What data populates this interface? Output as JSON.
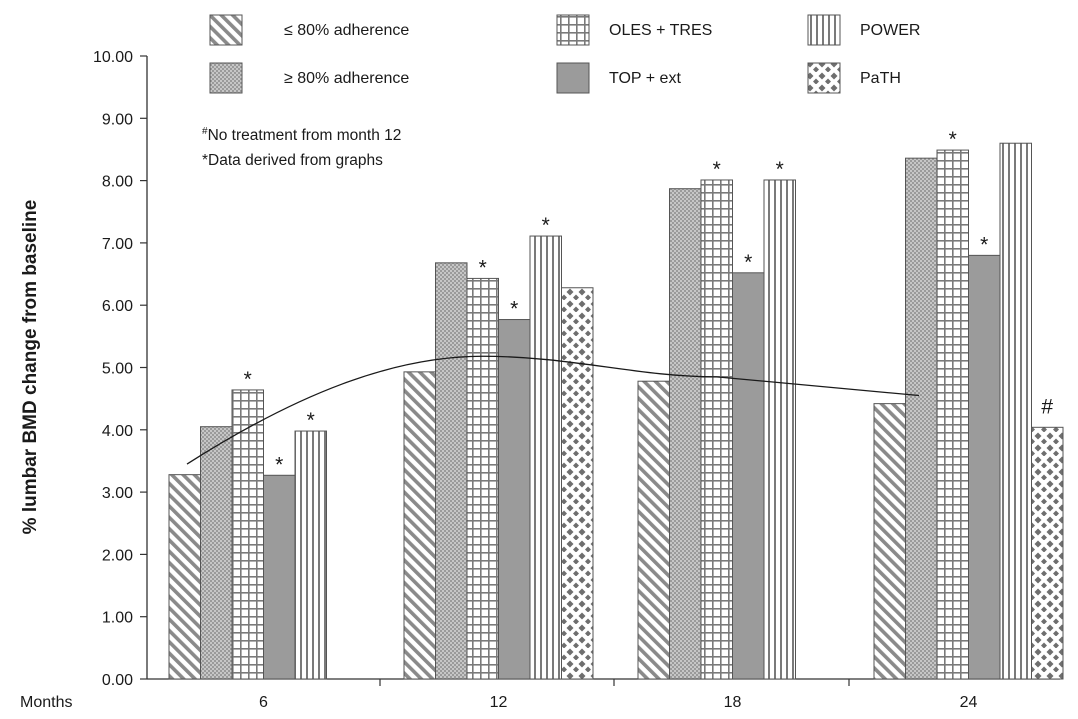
{
  "chart_data": {
    "type": "bar",
    "title": "",
    "ylabel": "% lumbar BMD change from baseline",
    "xlabel": "Months",
    "categories": [
      "6",
      "12",
      "18",
      "24"
    ],
    "ylim": [
      0,
      10
    ],
    "yticks": [
      "0.00",
      "1.00",
      "2.00",
      "3.00",
      "4.00",
      "5.00",
      "6.00",
      "7.00",
      "8.00",
      "9.00",
      "10.00"
    ],
    "grid": false,
    "legend_position": "top",
    "series": [
      {
        "name": "≤ 80% adherence",
        "pattern": "diagonal-hatch",
        "values": [
          3.28,
          4.93,
          4.78,
          4.42
        ],
        "markers": [
          "",
          "",
          "",
          ""
        ]
      },
      {
        "name": "≥ 80% adherence",
        "pattern": "dotted",
        "values": [
          4.05,
          6.68,
          7.87,
          8.36
        ],
        "markers": [
          "",
          "",
          "",
          ""
        ]
      },
      {
        "name": "OLES + TRES",
        "pattern": "grid",
        "values": [
          4.64,
          6.43,
          8.01,
          8.49
        ],
        "markers": [
          "*",
          "*",
          "*",
          "*"
        ]
      },
      {
        "name": "TOP + ext",
        "pattern": "solid-gray",
        "values": [
          3.27,
          5.77,
          6.52,
          6.8
        ],
        "markers": [
          "*",
          "*",
          "*",
          "*"
        ]
      },
      {
        "name": "POWER",
        "pattern": "vertical-lines",
        "values": [
          3.98,
          7.11,
          8.01,
          8.6
        ],
        "markers": [
          "*",
          "*",
          "*",
          ""
        ]
      },
      {
        "name": "PaTH",
        "pattern": "diamonds",
        "values": [
          null,
          6.28,
          null,
          4.04
        ],
        "markers": [
          "",
          "",
          "",
          "#"
        ]
      }
    ],
    "trendline": [
      {
        "x": "6",
        "y": 3.45
      },
      {
        "x": "12",
        "y": 5.18
      },
      {
        "x": "18",
        "y": 4.85
      },
      {
        "x": "24",
        "y": 4.55
      }
    ],
    "annotations": [
      {
        "prefix": "#",
        "text": "No treatment from month 12"
      },
      {
        "prefix": "",
        "text": "*Data derived from graphs"
      }
    ],
    "colors": {
      "bar_fill": "#9b9b9b",
      "bar_stroke": "#555555",
      "axis": "#333333",
      "text": "#1a1a1a"
    }
  }
}
